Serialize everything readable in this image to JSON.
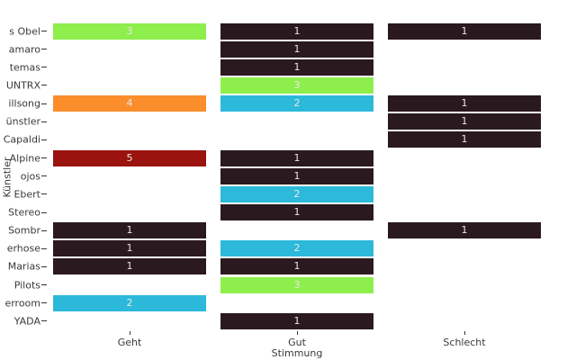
{
  "colors": {
    "background": "#ffffff",
    "axis_text": "#3a3a3a",
    "tick_mark": "#333333",
    "cell_value_text": "#e9e9e9"
  },
  "chart_data": {
    "type": "heatmap",
    "title": "",
    "xlabel": "Stimmung",
    "ylabel": "Künstler",
    "x_categories": [
      "Geht",
      "Gut",
      "Schlecht"
    ],
    "legend": "none",
    "grid": "off",
    "value_range": [
      1,
      5
    ],
    "fill_by_value": {
      "1": "#2a191f",
      "2": "#2cb9da",
      "3": "#8eee4b",
      "4": "#fb8d2a",
      "5": "#9a130e"
    },
    "rows": [
      {
        "label": "s Obel",
        "values": [
          3,
          1,
          1
        ]
      },
      {
        "label": "amaro",
        "values": [
          null,
          1,
          null
        ]
      },
      {
        "label": "temas",
        "values": [
          null,
          1,
          null
        ]
      },
      {
        "label": "UNTRX",
        "values": [
          null,
          3,
          null
        ]
      },
      {
        "label": "illsong",
        "values": [
          4,
          2,
          1
        ]
      },
      {
        "label": "ünstler",
        "values": [
          null,
          null,
          1
        ]
      },
      {
        "label": "Capaldi",
        "values": [
          null,
          null,
          1
        ]
      },
      {
        "label": "Alpine",
        "values": [
          5,
          1,
          null
        ]
      },
      {
        "label": "ojos",
        "values": [
          null,
          1,
          null
        ]
      },
      {
        "label": "Ebert",
        "values": [
          null,
          2,
          null
        ]
      },
      {
        "label": "Stereo",
        "values": [
          null,
          1,
          null
        ]
      },
      {
        "label": "Sombr",
        "values": [
          1,
          null,
          1
        ]
      },
      {
        "label": "erhose",
        "values": [
          1,
          2,
          null
        ]
      },
      {
        "label": "Marias",
        "values": [
          1,
          1,
          null
        ]
      },
      {
        "label": "Pilots",
        "values": [
          null,
          3,
          null
        ]
      },
      {
        "label": "erroom",
        "values": [
          2,
          null,
          null
        ]
      },
      {
        "label": "YADA",
        "values": [
          null,
          1,
          null
        ]
      }
    ]
  }
}
